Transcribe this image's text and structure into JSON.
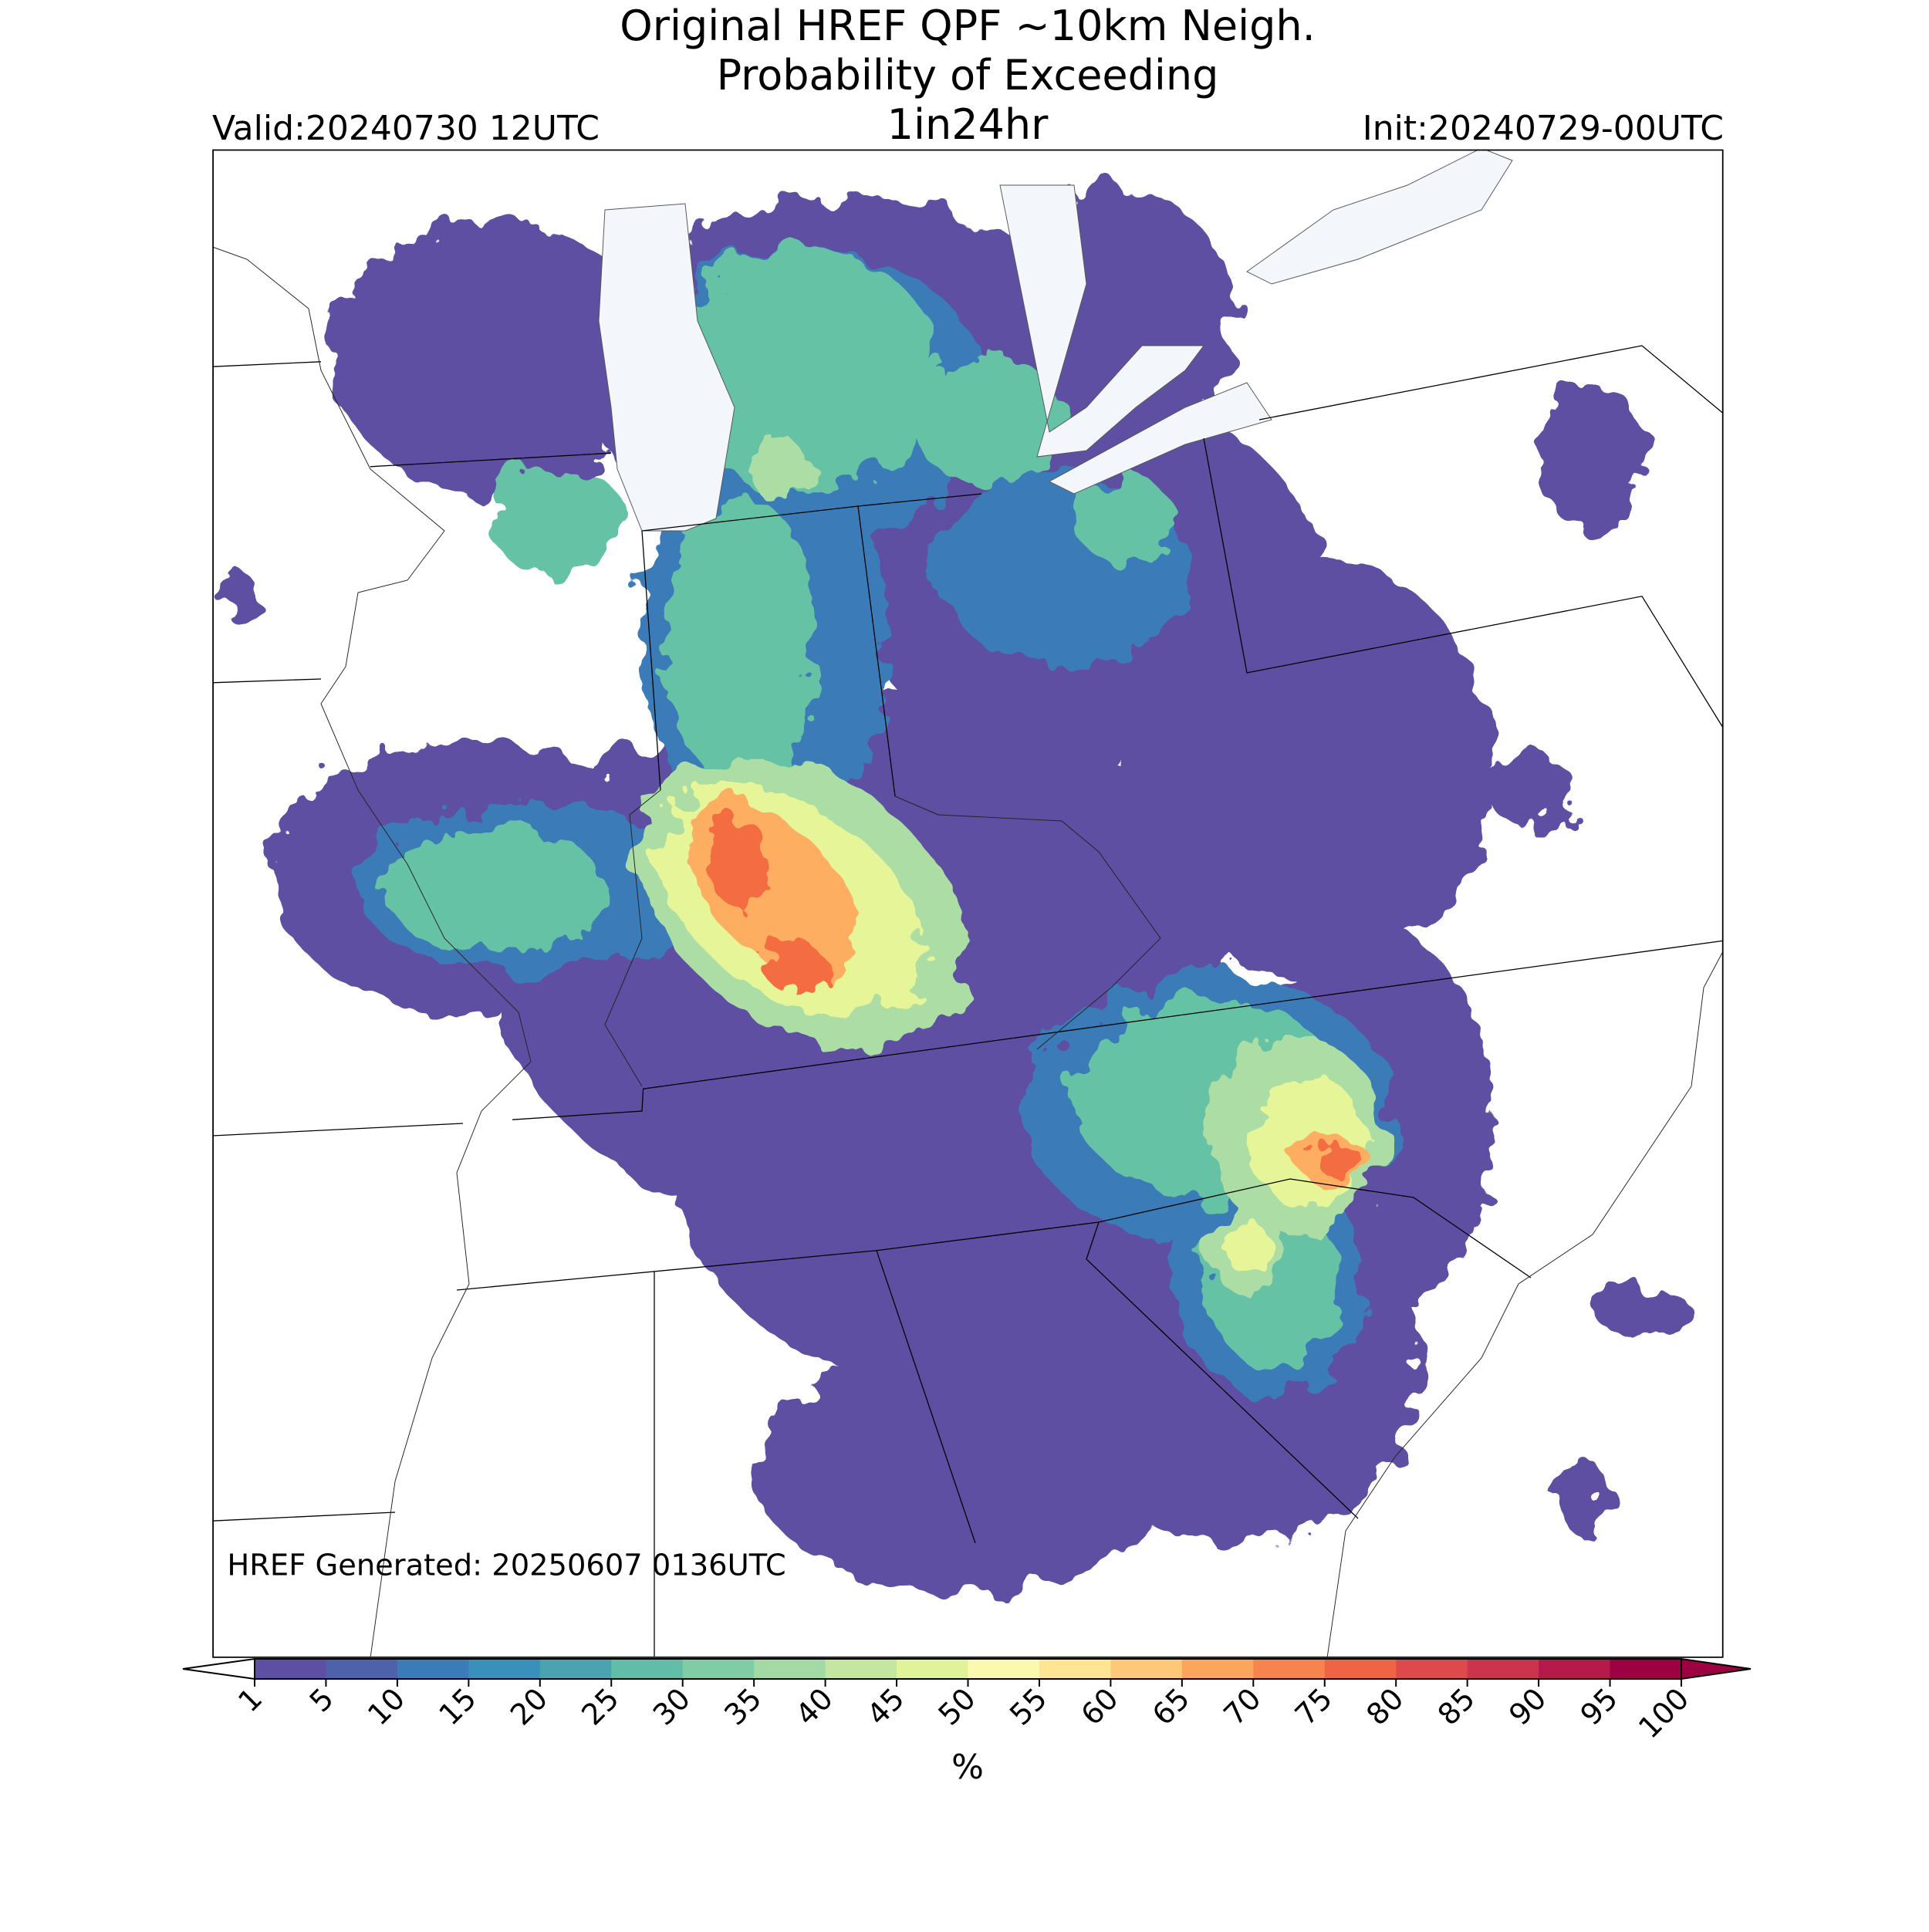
{
  "header": {
    "title_lines": [
      "Original HREF QPF ~10km Neigh.",
      "Probability of Exceeding",
      "1in24hr"
    ],
    "valid": "Valid:20240730 12UTC",
    "init": "Init:20240729-00UTC"
  },
  "map": {
    "footnote": "HREF Generated: 20250607 0136UTC"
  },
  "colorbar": {
    "label": "%",
    "ticks": [
      1,
      5,
      10,
      15,
      20,
      25,
      30,
      35,
      40,
      45,
      50,
      55,
      60,
      65,
      70,
      75,
      80,
      85,
      90,
      95,
      100
    ],
    "colors": [
      "#5e4fa2",
      "#4e62ab",
      "#3a7cb8",
      "#3890bb",
      "#4aa3b1",
      "#61bda8",
      "#80cca5",
      "#a2d9a4",
      "#c4e6a0",
      "#e1f39a",
      "#fbf8b0",
      "#fee593",
      "#fdc877",
      "#fca55d",
      "#f7844e",
      "#ef6445",
      "#de4a4c",
      "#cc334d",
      "#b51a4b",
      "#9e0142"
    ],
    "extend_colors": [
      "#ffffff",
      "#9e0142"
    ]
  }
}
